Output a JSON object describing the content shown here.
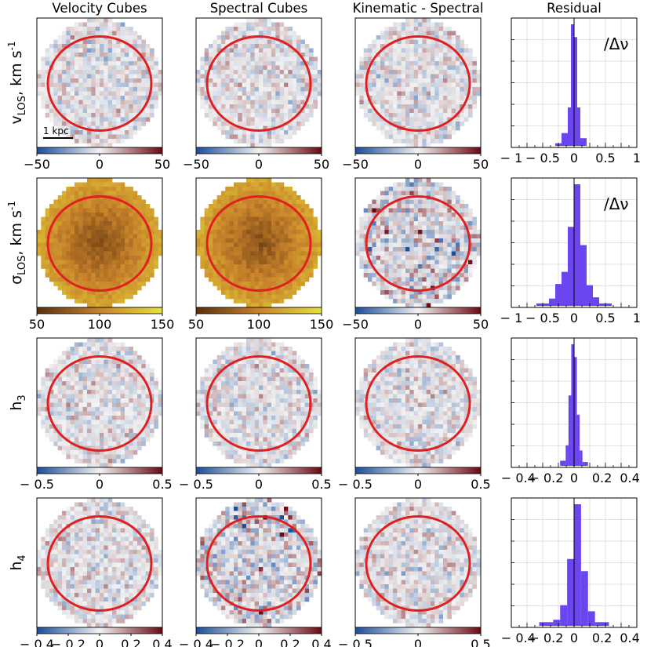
{
  "column_titles": [
    "Velocity Cubes",
    "Spectral Cubes",
    "Kinematic - Spectral",
    "Residual"
  ],
  "row_labels": [
    {
      "main": "v",
      "sub": "LOS",
      "unit": ", km s",
      "sup": "-1"
    },
    {
      "main": "σ",
      "sub": "LOS",
      "unit": ", km s",
      "sup": "-1"
    },
    {
      "main": "h",
      "sub": "3",
      "unit": "",
      "sup": ""
    },
    {
      "main": "h",
      "sub": "4",
      "unit": "",
      "sup": ""
    }
  ],
  "scalebar_label": "1 kpc",
  "colors": {
    "ellipse": "#e02020",
    "histogram": "#6a45f0",
    "diverging_low": "#1c4f9c",
    "diverging_mid": "#f2f2f2",
    "diverging_high": "#6e0a14",
    "sequential_low": "#5a2f0e",
    "sequential_mid": "#c8822a",
    "sequential_high": "#e6e03c"
  },
  "chart_data": [
    {
      "type": "heatmap",
      "row": 0,
      "col": 0,
      "colormap": "diverging",
      "ticks": [
        "−50",
        "0",
        "50"
      ],
      "vmin": -50,
      "vmax": 50,
      "scalebar": true
    },
    {
      "type": "heatmap",
      "row": 0,
      "col": 1,
      "colormap": "diverging",
      "ticks": [
        "−50",
        "0",
        "50"
      ],
      "vmin": -50,
      "vmax": 50
    },
    {
      "type": "heatmap",
      "row": 0,
      "col": 2,
      "colormap": "diverging",
      "ticks": [
        "−50",
        "0",
        "50"
      ],
      "vmin": -50,
      "vmax": 50
    },
    {
      "type": "bar",
      "row": 0,
      "col": 3,
      "annotation": "/Δν",
      "xlim": [
        -1,
        1
      ],
      "ticks": [
        "− 1",
        "− 0.5",
        "0",
        "0.5",
        "1"
      ],
      "bin_edges": [
        -0.3,
        -0.2,
        -0.1,
        -0.05,
        0,
        0.05,
        0.1,
        0.2
      ],
      "counts": [
        0.02,
        0.1,
        0.3,
        0.95,
        0.85,
        0.3,
        0.06
      ]
    },
    {
      "type": "heatmap",
      "row": 1,
      "col": 0,
      "colormap": "sequential",
      "ticks": [
        "50",
        "100",
        "150"
      ],
      "vmin": 50,
      "vmax": 150
    },
    {
      "type": "heatmap",
      "row": 1,
      "col": 1,
      "colormap": "sequential",
      "ticks": [
        "50",
        "100",
        "150"
      ],
      "vmin": 50,
      "vmax": 150
    },
    {
      "type": "heatmap",
      "row": 1,
      "col": 2,
      "colormap": "diverging",
      "ticks": [
        "−50",
        "0",
        "50"
      ],
      "vmin": -50,
      "vmax": 50
    },
    {
      "type": "bar",
      "row": 1,
      "col": 3,
      "annotation": "/Δν",
      "xlim": [
        -1,
        1
      ],
      "ticks": [
        "− 1",
        "− 0.5",
        "0",
        "0.5",
        "1"
      ],
      "bin_edges": [
        -0.6,
        -0.4,
        -0.3,
        -0.2,
        -0.1,
        0,
        0.1,
        0.2,
        0.3,
        0.4,
        0.6
      ],
      "counts": [
        0.02,
        0.06,
        0.18,
        0.28,
        0.65,
        1.0,
        0.5,
        0.17,
        0.07,
        0.02
      ]
    },
    {
      "type": "heatmap",
      "row": 2,
      "col": 0,
      "colormap": "diverging",
      "ticks": [
        "− 0.5",
        "0",
        "0.5"
      ],
      "vmin": -0.5,
      "vmax": 0.5
    },
    {
      "type": "heatmap",
      "row": 2,
      "col": 1,
      "colormap": "diverging",
      "ticks": [
        "− 0.5",
        "0",
        "0.5"
      ],
      "vmin": -0.5,
      "vmax": 0.5
    },
    {
      "type": "heatmap",
      "row": 2,
      "col": 2,
      "colormap": "diverging",
      "ticks": [
        "− 0.5",
        "0",
        "0.5"
      ],
      "vmin": -0.5,
      "vmax": 0.5
    },
    {
      "type": "bar",
      "row": 2,
      "col": 3,
      "annotation": "",
      "xlim": [
        -0.45,
        0.45
      ],
      "ticks": [
        "− 0.4",
        "− 0.2",
        "0",
        "0.2",
        "0.4"
      ],
      "bin_edges": [
        -0.1,
        -0.06,
        -0.04,
        -0.02,
        0,
        0.02,
        0.04,
        0.06,
        0.1
      ],
      "counts": [
        0.04,
        0.16,
        0.55,
        0.95,
        0.85,
        0.4,
        0.12,
        0.03
      ]
    },
    {
      "type": "heatmap",
      "row": 3,
      "col": 0,
      "colormap": "diverging",
      "ticks": [
        "− 0.4",
        "− 0.2",
        "0",
        "0.2",
        "0.4"
      ],
      "vmin": -0.4,
      "vmax": 0.4
    },
    {
      "type": "heatmap",
      "row": 3,
      "col": 1,
      "colormap": "diverging",
      "ticks": [
        "− 0.4",
        "− 0.2",
        "0",
        "0.2",
        "0.4"
      ],
      "vmin": -0.4,
      "vmax": 0.4
    },
    {
      "type": "heatmap",
      "row": 3,
      "col": 2,
      "colormap": "diverging",
      "ticks": [
        "− 0.5",
        "0",
        "0.5"
      ],
      "vmin": -0.5,
      "vmax": 0.5
    },
    {
      "type": "bar",
      "row": 3,
      "col": 3,
      "annotation": "",
      "xlim": [
        -0.45,
        0.45
      ],
      "ticks": [
        "− 0.4",
        "− 0.2",
        "0",
        "0.2",
        "0.4"
      ],
      "bin_edges": [
        -0.25,
        -0.15,
        -0.1,
        -0.05,
        0,
        0.05,
        0.1,
        0.15,
        0.25
      ],
      "counts": [
        0.03,
        0.05,
        0.17,
        0.55,
        1.0,
        0.45,
        0.12,
        0.03
      ]
    }
  ]
}
